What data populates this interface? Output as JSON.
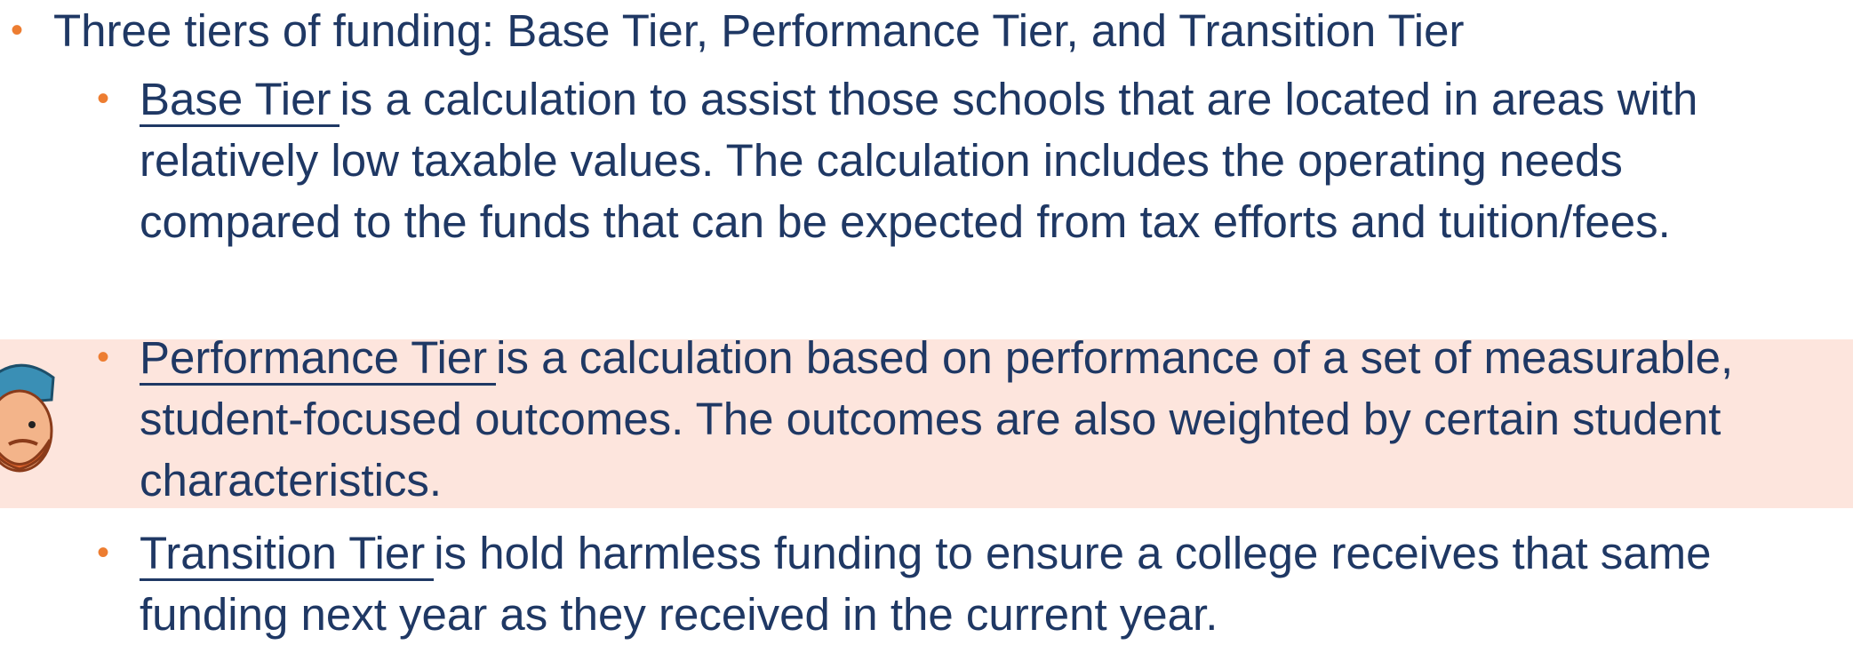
{
  "bullet": {
    "text": "Three tiers of funding:  Base Tier, Performance Tier, and Transition Tier"
  },
  "sub_bullets": [
    {
      "term": "Base Tier",
      "text": "is a calculation to assist those schools that are located in areas with relatively low taxable values.  The calculation includes the operating needs compared to the funds that can be expected from tax efforts and tuition/fees."
    },
    {
      "term": "Performance Tier",
      "text": "is a calculation based on performance of a set of measurable, student-focused outcomes.  The outcomes are also weighted by certain student characteristics."
    },
    {
      "term": "Transition Tier",
      "text": "is hold harmless funding to ensure a college receives that same funding next year as they received in the current year."
    }
  ]
}
